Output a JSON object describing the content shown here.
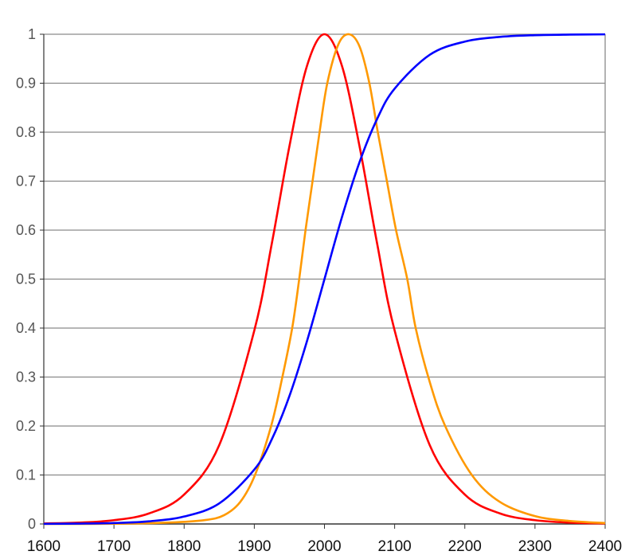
{
  "chart_data": {
    "type": "line",
    "title": "",
    "xlabel": "",
    "ylabel": "",
    "xlim": [
      1600,
      2400
    ],
    "ylim": [
      0,
      1
    ],
    "grid": "horizontal",
    "legend": "none",
    "x_ticks": [
      "1600",
      "1700",
      "1800",
      "1900",
      "2000",
      "2100",
      "2200",
      "2300",
      "2400"
    ],
    "y_ticks": [
      "0",
      "0.1",
      "0.2",
      "0.3",
      "0.4",
      "0.5",
      "0.6",
      "0.7",
      "0.8",
      "0.9",
      "1"
    ],
    "series": [
      {
        "name": "red",
        "color": "#ff0000",
        "x": [
          1600,
          1650,
          1700,
          1750,
          1800,
          1850,
          1900,
          1925,
          1950,
          1975,
          2000,
          2025,
          2050,
          2075,
          2100,
          2150,
          2200,
          2250,
          2300,
          2350,
          2400
        ],
        "y": [
          0.001,
          0.0027,
          0.0077,
          0.0215,
          0.06,
          0.161,
          0.395,
          0.573,
          0.771,
          0.935,
          1,
          0.935,
          0.771,
          0.573,
          0.395,
          0.161,
          0.06,
          0.0215,
          0.0077,
          0.0027,
          0.001
        ]
      },
      {
        "name": "orange",
        "color": "#ff9900",
        "x": [
          1600,
          1700,
          1780,
          1830,
          1857,
          1880,
          1901,
          1924,
          1940,
          1954,
          1964,
          1973,
          1983,
          1993,
          2004,
          2020,
          2035,
          2050,
          2064,
          2076,
          2089,
          2102,
          2118,
          2130,
          2150,
          2172,
          2210,
          2250,
          2300,
          2350,
          2400
        ],
        "y": [
          0,
          0.0005,
          0.003,
          0.008,
          0.018,
          0.045,
          0.1,
          0.2,
          0.3,
          0.4,
          0.5,
          0.6,
          0.7,
          0.8,
          0.9,
          0.98,
          1,
          0.975,
          0.9,
          0.8,
          0.7,
          0.6,
          0.5,
          0.4,
          0.29,
          0.2,
          0.1,
          0.045,
          0.016,
          0.006,
          0.002
        ]
      },
      {
        "name": "blue",
        "color": "#0000ff",
        "x": [
          1600,
          1650,
          1700,
          1750,
          1800,
          1850,
          1900,
          1925,
          1950,
          1975,
          2000,
          2025,
          2050,
          2075,
          2100,
          2150,
          2200,
          2250,
          2300,
          2350,
          2400
        ],
        "y": [
          0.0002,
          0.0007,
          0.0019,
          0.0054,
          0.0152,
          0.042,
          0.111,
          0.173,
          0.261,
          0.373,
          0.5,
          0.627,
          0.739,
          0.827,
          0.889,
          0.958,
          0.985,
          0.9946,
          0.9981,
          0.9993,
          0.9998
        ]
      }
    ]
  }
}
